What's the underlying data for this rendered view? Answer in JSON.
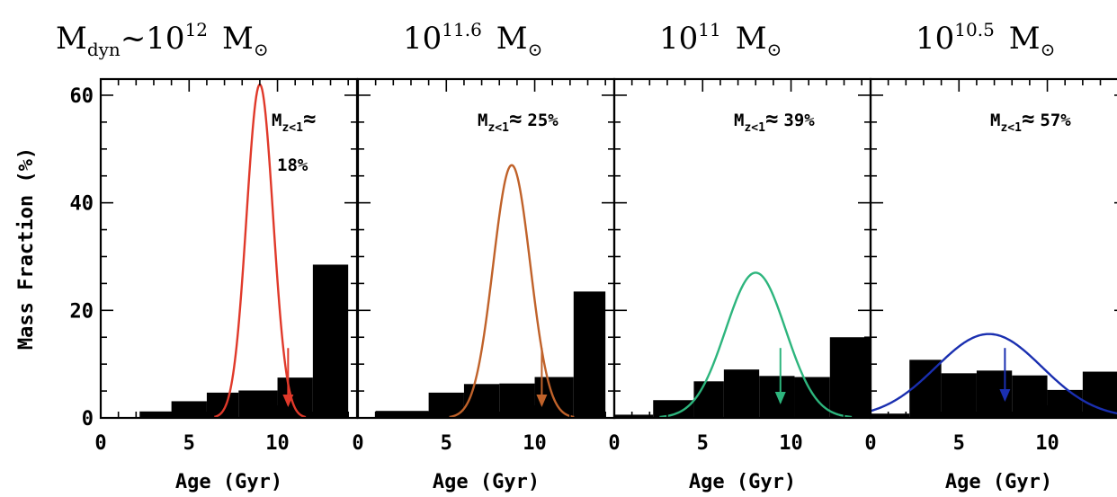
{
  "chart_data": [
    {
      "type": "bar",
      "title": "M_dyn~10^12 M_sun",
      "title_parts": {
        "main": "M",
        "sub": "dyn",
        "mid": "~10",
        "sup": "12",
        "unit": "M",
        "unit_symbol": "⊙"
      },
      "xlabel": "Age (Gyr)",
      "ylabel": "Mass Fraction (%)",
      "xlim": [
        0,
        14.5
      ],
      "ylim": [
        0,
        63
      ],
      "xticks": [
        "0",
        "5",
        "10"
      ],
      "yticks": [
        "0",
        "20",
        "40",
        "60"
      ],
      "bars": [
        {
          "x0": 2.2,
          "x1": 4.0,
          "value": 1.2
        },
        {
          "x0": 4.0,
          "x1": 6.0,
          "value": 3.1
        },
        {
          "x0": 6.0,
          "x1": 7.8,
          "value": 4.7
        },
        {
          "x0": 7.8,
          "x1": 10.0,
          "value": 5.1
        },
        {
          "x0": 10.0,
          "x1": 12.0,
          "value": 7.5
        },
        {
          "x0": 12.0,
          "x1": 14.0,
          "value": 28.5
        }
      ],
      "gaussian": {
        "peak": 62,
        "center": 9.0,
        "sigma": 0.75,
        "color": "#e0392a"
      },
      "arrow": {
        "x": 10.6,
        "y_start": 13,
        "y_end": 2
      },
      "annotation": {
        "line1": "M",
        "sub": "z<1",
        "approx": "≈",
        "value": "18%"
      }
    },
    {
      "type": "bar",
      "title": "10^11.6 M_sun",
      "title_parts": {
        "main": "",
        "sub": "",
        "mid": "10",
        "sup": "11.6",
        "unit": "M",
        "unit_symbol": "⊙"
      },
      "xlabel": "Age (Gyr)",
      "ylabel": "",
      "xlim": [
        0,
        14.5
      ],
      "ylim": [
        0,
        63
      ],
      "xticks": [
        "0",
        "5",
        "10"
      ],
      "yticks": [],
      "bars": [
        {
          "x0": 1.0,
          "x1": 4.0,
          "value": 1.3
        },
        {
          "x0": 4.0,
          "x1": 6.0,
          "value": 4.7
        },
        {
          "x0": 6.0,
          "x1": 8.0,
          "value": 6.3
        },
        {
          "x0": 8.0,
          "x1": 10.0,
          "value": 6.4
        },
        {
          "x0": 10.0,
          "x1": 12.2,
          "value": 7.6
        },
        {
          "x0": 12.2,
          "x1": 14.0,
          "value": 23.5
        }
      ],
      "gaussian": {
        "peak": 47,
        "center": 8.7,
        "sigma": 1.05,
        "color": "#c0622a"
      },
      "arrow": {
        "x": 10.4,
        "y_start": 13,
        "y_end": 2
      },
      "annotation": {
        "line1": "M",
        "sub": "z<1",
        "approx": "≈",
        "value": "25%"
      }
    },
    {
      "type": "bar",
      "title": "10^11 M_sun",
      "title_parts": {
        "main": "",
        "sub": "",
        "mid": "10",
        "sup": "11",
        "unit": "M",
        "unit_symbol": "⊙"
      },
      "xlabel": "Age (Gyr)",
      "ylabel": "",
      "xlim": [
        0,
        14.5
      ],
      "ylim": [
        0,
        63
      ],
      "xticks": [
        "0",
        "5",
        "10"
      ],
      "yticks": [],
      "bars": [
        {
          "x0": 0.0,
          "x1": 2.2,
          "value": 0.6
        },
        {
          "x0": 2.2,
          "x1": 4.5,
          "value": 3.3
        },
        {
          "x0": 4.5,
          "x1": 6.2,
          "value": 6.8
        },
        {
          "x0": 6.2,
          "x1": 8.2,
          "value": 9.0
        },
        {
          "x0": 8.2,
          "x1": 10.2,
          "value": 7.8
        },
        {
          "x0": 10.2,
          "x1": 12.2,
          "value": 7.6
        },
        {
          "x0": 12.2,
          "x1": 14.5,
          "value": 15.0
        }
      ],
      "gaussian": {
        "peak": 27,
        "center": 8.0,
        "sigma": 1.7,
        "color": "#2db57d"
      },
      "arrow": {
        "x": 9.4,
        "y_start": 13,
        "y_end": 2.5
      },
      "annotation": {
        "line1": "M",
        "sub": "z<1",
        "approx": "≈",
        "value": "39%"
      }
    },
    {
      "type": "bar",
      "title": "10^10.5 M_sun",
      "title_parts": {
        "main": "",
        "sub": "",
        "mid": "10",
        "sup": "10.5",
        "unit": "M",
        "unit_symbol": "⊙"
      },
      "xlabel": "Age (Gyr)",
      "ylabel": "",
      "xlim": [
        0,
        14.5
      ],
      "ylim": [
        0,
        63
      ],
      "xticks": [
        "0",
        "5",
        "10"
      ],
      "yticks": [],
      "bars": [
        {
          "x0": 0.0,
          "x1": 2.2,
          "value": 0.8
        },
        {
          "x0": 2.2,
          "x1": 4.0,
          "value": 10.8
        },
        {
          "x0": 4.0,
          "x1": 6.0,
          "value": 8.3
        },
        {
          "x0": 6.0,
          "x1": 8.0,
          "value": 8.8
        },
        {
          "x0": 8.0,
          "x1": 10.0,
          "value": 7.9
        },
        {
          "x0": 10.0,
          "x1": 12.0,
          "value": 5.2
        },
        {
          "x0": 12.0,
          "x1": 14.5,
          "value": 8.6
        }
      ],
      "gaussian": {
        "peak": 15.6,
        "center": 6.7,
        "sigma": 3.0,
        "color": "#1a2fb0"
      },
      "arrow": {
        "x": 7.6,
        "y_start": 13,
        "y_end": 3
      },
      "annotation": {
        "line1": "M",
        "sub": "z<1",
        "approx": "≈",
        "value": "57%"
      }
    }
  ]
}
